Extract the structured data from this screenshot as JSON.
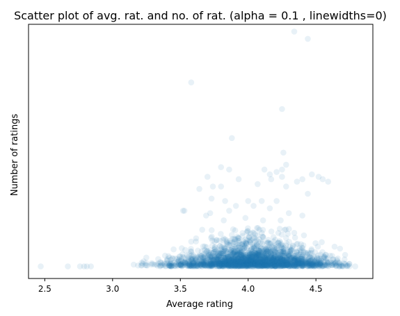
{
  "chart_data": {
    "type": "scatter",
    "title": "Scatter plot of avg. rat. and no. of rat. (alpha = 0.1 , linewidths=0)",
    "xlabel": "Average rating",
    "ylabel": "Number of ratings",
    "xlim": [
      2.38,
      4.92
    ],
    "ylim": [
      -0.05,
      1.0
    ],
    "x_ticks": [
      2.5,
      3.0,
      3.5,
      4.0,
      4.5
    ],
    "x_tick_labels": [
      "2.5",
      "3.0",
      "3.5",
      "4.0",
      "4.5"
    ],
    "y_ticks_visible": false,
    "grid": false,
    "legend": "none",
    "series": [
      {
        "color": "#1f77b4",
        "alpha": 0.1,
        "linewidths": 0,
        "note_points": "base band: dense cloud of points concentrated near zero; sparse outliers listed as x,y pairs",
        "outliers": [
          [
            4.34,
            0.97
          ],
          [
            4.44,
            0.94
          ],
          [
            3.58,
            0.76
          ],
          [
            4.25,
            0.65
          ],
          [
            3.88,
            0.53
          ],
          [
            4.26,
            0.47
          ],
          [
            4.28,
            0.42
          ],
          [
            4.25,
            0.4
          ],
          [
            3.8,
            0.41
          ],
          [
            3.86,
            0.4
          ],
          [
            4.12,
            0.4
          ],
          [
            4.21,
            0.39
          ],
          [
            4.16,
            0.38
          ],
          [
            3.7,
            0.37
          ],
          [
            4.25,
            0.37
          ],
          [
            4.52,
            0.37
          ],
          [
            4.59,
            0.35
          ],
          [
            4.55,
            0.36
          ],
          [
            4.47,
            0.38
          ],
          [
            4.4,
            0.36
          ],
          [
            4.36,
            0.35
          ],
          [
            4.17,
            0.36
          ],
          [
            3.93,
            0.36
          ],
          [
            3.74,
            0.33
          ],
          [
            3.64,
            0.32
          ],
          [
            3.8,
            0.33
          ],
          [
            4.07,
            0.34
          ],
          [
            4.28,
            0.33
          ],
          [
            3.52,
            0.23
          ],
          [
            3.53,
            0.23
          ],
          [
            4.44,
            0.3
          ],
          [
            3.73,
            0.28
          ],
          [
            3.83,
            0.27
          ],
          [
            4.0,
            0.27
          ],
          [
            4.1,
            0.27
          ],
          [
            4.21,
            0.27
          ],
          [
            3.91,
            0.25
          ],
          [
            4.04,
            0.25
          ],
          [
            4.16,
            0.24
          ],
          [
            3.86,
            0.23
          ],
          [
            3.72,
            0.22
          ],
          [
            4.3,
            0.22
          ],
          [
            3.69,
            0.21
          ],
          [
            3.82,
            0.19
          ],
          [
            3.98,
            0.2
          ],
          [
            4.11,
            0.19
          ],
          [
            4.24,
            0.19
          ],
          [
            4.4,
            0.21
          ]
        ],
        "sparse_low_points": [
          [
            2.47,
            0.0
          ],
          [
            2.67,
            0.0
          ],
          [
            2.76,
            0.0
          ],
          [
            2.79,
            0.0
          ],
          [
            2.81,
            0.0
          ],
          [
            2.84,
            0.0
          ],
          [
            4.79,
            0.0
          ],
          [
            4.7,
            0.0
          ]
        ],
        "base_band": {
          "x_center": 4.05,
          "x_spread": 0.3,
          "x_range": [
            2.9,
            4.75
          ],
          "y_mode": 0.0,
          "y_decay": 0.03
        }
      }
    ]
  }
}
